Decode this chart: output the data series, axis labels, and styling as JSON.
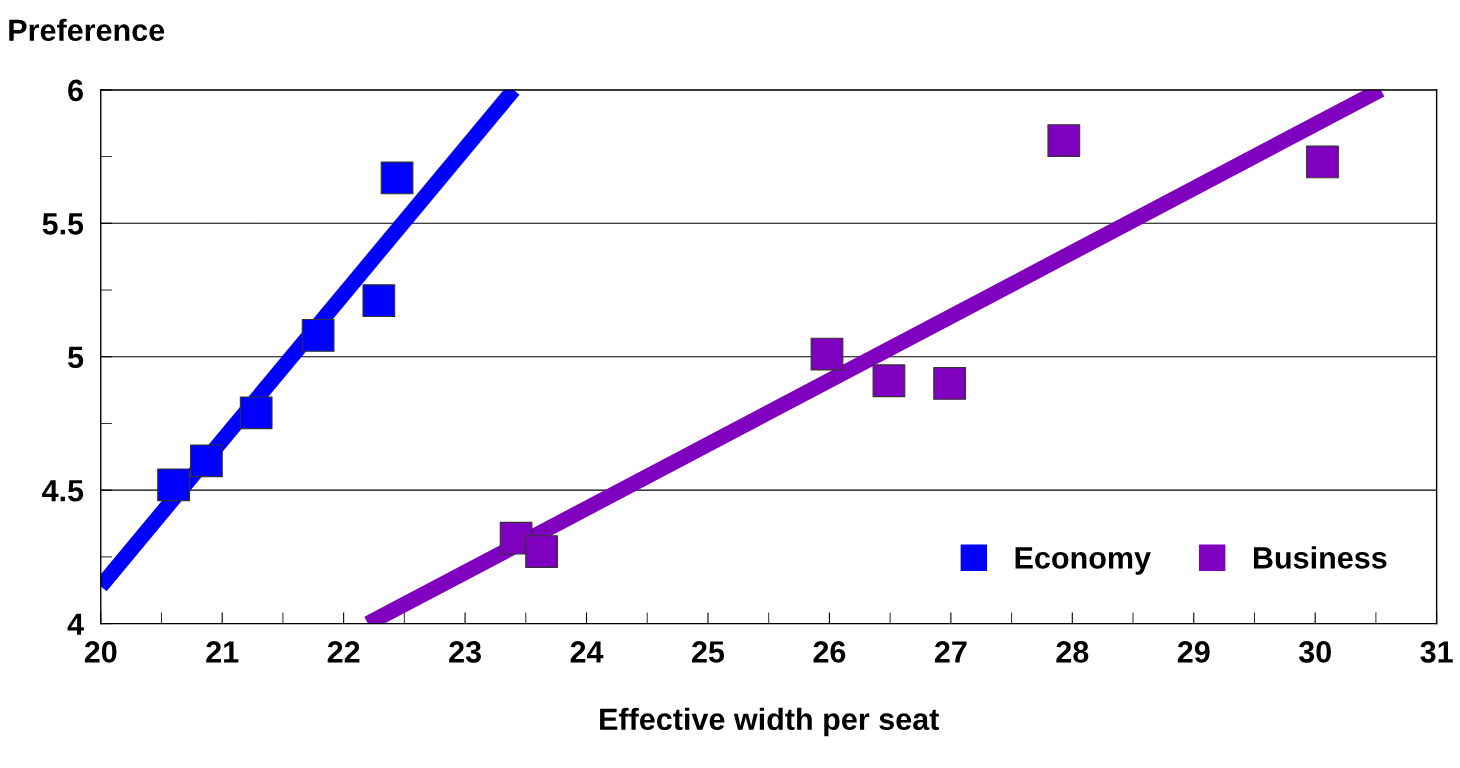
{
  "chart_data": {
    "type": "scatter",
    "xlabel": "Effective width per seat",
    "ylabel": "Preference",
    "xlim": [
      20,
      31
    ],
    "xticks": [
      20,
      21,
      22,
      23,
      24,
      25,
      26,
      27,
      28,
      29,
      30,
      31
    ],
    "ylim": [
      4,
      6
    ],
    "yticks": [
      4,
      4.5,
      5,
      5.5,
      6
    ],
    "grid": "y",
    "legend": "bottom right",
    "series": [
      {
        "name": "Economy",
        "marker": "square",
        "color": "#0000ff",
        "x": [
          20.6,
          20.87,
          21.28,
          21.79,
          22.29,
          22.44
        ],
        "values": [
          4.52,
          4.61,
          4.79,
          5.08,
          5.21,
          5.67
        ]
      },
      {
        "name": "Business",
        "marker": "square",
        "color": "#8000c0",
        "x": [
          23.42,
          23.63,
          25.98,
          26.49,
          26.99,
          27.93,
          30.06
        ],
        "values": [
          4.32,
          4.27,
          5.01,
          4.91,
          4.9,
          5.81,
          5.73
        ]
      },
      {
        "type": "line",
        "marker": "none",
        "color": "#0000ff",
        "x": [
          20.0,
          23.4
        ],
        "values": [
          4.14,
          6.0
        ]
      },
      {
        "type": "line",
        "marker": "none",
        "color": "#8000c0",
        "x": [
          22.2,
          30.54
        ],
        "values": [
          4.0,
          6.0
        ]
      }
    ]
  }
}
